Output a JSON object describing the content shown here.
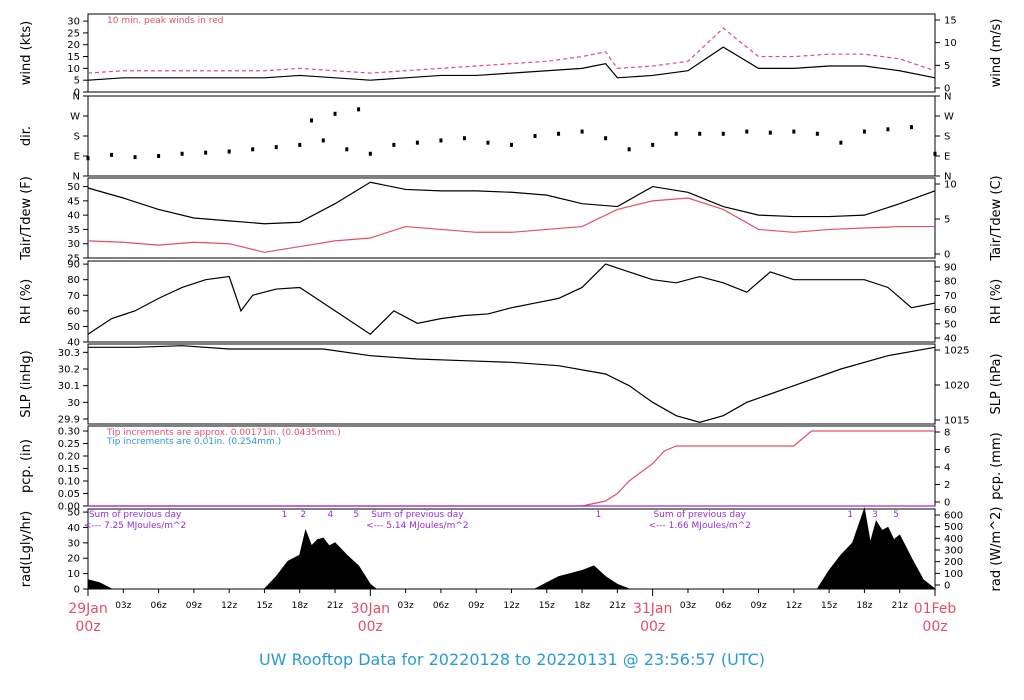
{
  "colors": {
    "red": "#e0506a",
    "blue": "#2a9ad6",
    "purple": "#9a2be2",
    "black": "#000000"
  },
  "title": "UW Rooftop Data for 20220128  to  20220131 @ 23:56:57  (UTC)",
  "x_axis": {
    "hour_ticks": [
      "03z",
      "06z",
      "09z",
      "12z",
      "15z",
      "18z",
      "21z"
    ],
    "days": [
      {
        "label": "29Jan",
        "sub": "00z"
      },
      {
        "label": "30Jan",
        "sub": "00z"
      },
      {
        "label": "31Jan",
        "sub": "00z"
      },
      {
        "label": "01Feb",
        "sub": "00z"
      }
    ],
    "range_hours": [
      0,
      72
    ]
  },
  "chart_data": [
    {
      "type": "line",
      "panel": "wind",
      "ylabel_left": "wind (kts)",
      "ylabel_right": "wind (m/s)",
      "ylim": [
        0,
        33
      ],
      "yticks_left": [
        0,
        5,
        10,
        15,
        20,
        25,
        30
      ],
      "yticks_right": [
        "0",
        "5",
        "10",
        "15"
      ],
      "annotation": "10 min. peak winds in red",
      "series": [
        {
          "color": "black",
          "style": "line",
          "x": [
            0,
            3,
            6,
            9,
            12,
            15,
            18,
            21,
            24,
            27,
            30,
            33,
            36,
            39,
            42,
            44,
            45,
            48,
            51,
            54,
            57,
            60,
            63,
            66,
            69,
            72
          ],
          "values": [
            5,
            6,
            6,
            6,
            6,
            6,
            7,
            6,
            5,
            6,
            7,
            7,
            8,
            9,
            10,
            12,
            6,
            7,
            9,
            19,
            10,
            10,
            11,
            11,
            9,
            6
          ]
        },
        {
          "color": "red",
          "style": "dashed",
          "x": [
            0,
            3,
            6,
            9,
            12,
            15,
            18,
            21,
            24,
            27,
            30,
            33,
            36,
            39,
            42,
            44,
            45,
            48,
            51,
            54,
            57,
            60,
            63,
            66,
            69,
            72
          ],
          "values": [
            8,
            9,
            9,
            9,
            9,
            9,
            10,
            9,
            8,
            9,
            10,
            11,
            12,
            13,
            15,
            17,
            10,
            11,
            13,
            27,
            15,
            15,
            16,
            16,
            14,
            9
          ]
        }
      ]
    },
    {
      "type": "scatter",
      "panel": "dir",
      "ylabel_left": "dir.",
      "ylim": [
        0,
        360
      ],
      "yticks_left": [
        "N",
        "E",
        "S",
        "W",
        "N"
      ],
      "yticks_right": [
        "N",
        "E",
        "S",
        "W",
        "N"
      ],
      "series": [
        {
          "color": "black",
          "x": [
            0,
            2,
            4,
            6,
            8,
            10,
            12,
            14,
            16,
            18,
            19,
            20,
            21,
            22,
            23,
            24,
            26,
            28,
            30,
            32,
            34,
            36,
            38,
            40,
            42,
            44,
            46,
            48,
            50,
            52,
            54,
            56,
            58,
            60,
            62,
            64,
            66,
            68,
            70,
            72
          ],
          "values": [
            80,
            95,
            85,
            90,
            100,
            105,
            110,
            120,
            130,
            140,
            250,
            160,
            280,
            120,
            300,
            100,
            140,
            150,
            160,
            170,
            150,
            140,
            180,
            190,
            200,
            170,
            120,
            140,
            190,
            190,
            190,
            200,
            195,
            200,
            190,
            150,
            200,
            210,
            220,
            100
          ]
        }
      ]
    },
    {
      "type": "line",
      "panel": "temp",
      "ylabel_left": "Tair/Tdew (F)",
      "ylabel_right": "Tair/Tdew (C)",
      "ylim": [
        25,
        53
      ],
      "yticks_left": [
        25,
        30,
        35,
        40,
        45,
        50
      ],
      "yticks_right": [
        "0",
        "5",
        "10"
      ],
      "series": [
        {
          "color": "black",
          "x": [
            0,
            3,
            6,
            9,
            12,
            15,
            18,
            21,
            24,
            27,
            30,
            33,
            36,
            39,
            42,
            45,
            48,
            51,
            54,
            57,
            60,
            63,
            66,
            69,
            72
          ],
          "values": [
            49.5,
            46,
            42,
            39,
            38,
            37,
            37.5,
            44,
            51.5,
            49,
            48.5,
            48.5,
            48,
            47,
            44,
            43,
            50,
            48,
            43,
            40,
            39.5,
            39.5,
            40,
            44,
            48.5
          ]
        },
        {
          "color": "red",
          "x": [
            0,
            3,
            6,
            9,
            12,
            15,
            18,
            21,
            24,
            27,
            30,
            33,
            36,
            39,
            42,
            45,
            48,
            51,
            54,
            57,
            60,
            63,
            66,
            69,
            72
          ],
          "values": [
            31,
            30.5,
            29.5,
            30.5,
            30,
            27,
            29,
            31,
            32,
            36,
            35,
            34,
            34,
            35,
            36,
            42,
            45,
            46,
            42,
            35,
            34,
            35,
            35.5,
            36,
            36
          ]
        }
      ]
    },
    {
      "type": "line",
      "panel": "rh",
      "ylabel_left": "RH (%)",
      "ylabel_right": "RH (%)",
      "ylim": [
        40,
        92
      ],
      "yticks_left": [
        40,
        50,
        60,
        70,
        80,
        90
      ],
      "yticks_right": [
        "40",
        "50",
        "60",
        "70",
        "80",
        "90"
      ],
      "series": [
        {
          "color": "black",
          "x": [
            0,
            2,
            4,
            6,
            8,
            10,
            12,
            13,
            14,
            16,
            18,
            20,
            22,
            24,
            26,
            28,
            30,
            32,
            34,
            36,
            38,
            40,
            42,
            44,
            46,
            48,
            50,
            52,
            54,
            56,
            58,
            60,
            62,
            64,
            66,
            68,
            70,
            72
          ],
          "values": [
            45,
            55,
            60,
            68,
            75,
            80,
            82,
            60,
            70,
            74,
            75,
            65,
            55,
            45,
            60,
            52,
            55,
            57,
            58,
            62,
            65,
            68,
            75,
            90,
            85,
            80,
            78,
            82,
            78,
            72,
            85,
            80,
            80,
            80,
            80,
            75,
            62,
            65
          ]
        }
      ]
    },
    {
      "type": "line",
      "panel": "slp",
      "ylabel_left": "SLP (inHg)",
      "ylabel_right": "SLP (hPa)",
      "ylim": [
        29.87,
        30.35
      ],
      "yticks_left": [
        29.9,
        30.0,
        30.1,
        30.2,
        30.3
      ],
      "yticks_right": [
        "1015",
        "1020",
        "1025"
      ],
      "series": [
        {
          "color": "black",
          "x": [
            0,
            4,
            8,
            12,
            16,
            20,
            24,
            28,
            32,
            36,
            40,
            44,
            46,
            48,
            50,
            52,
            54,
            56,
            60,
            64,
            68,
            72
          ],
          "values": [
            30.33,
            30.33,
            30.34,
            30.32,
            30.32,
            30.32,
            30.28,
            30.26,
            30.25,
            30.24,
            30.22,
            30.17,
            30.1,
            30.0,
            29.92,
            29.88,
            29.92,
            30.0,
            30.1,
            30.2,
            30.28,
            30.33
          ]
        }
      ]
    },
    {
      "type": "line",
      "panel": "pcp",
      "ylabel_left": "pcp. (in)",
      "ylabel_right": "pcp. (mm)",
      "ylim": [
        0,
        0.32
      ],
      "yticks_left": [
        0.0,
        0.05,
        0.1,
        0.15,
        0.2,
        0.25,
        0.3
      ],
      "yticks_left_labels": [
        "0.00",
        "0.05",
        "0.10",
        "0.15",
        "0.20",
        "0.25",
        "0.30"
      ],
      "yticks_right": [
        "0",
        "2",
        "4",
        "6",
        "8"
      ],
      "notes": [
        {
          "text": "Tip increments are approx. 0.00171in. (0.0435mm.)",
          "color": "red"
        },
        {
          "text": "Tip increments are 0.01in. (0.254mm.)",
          "color": "blue"
        }
      ],
      "series": [
        {
          "color": "red",
          "x": [
            0,
            42,
            44,
            45,
            46,
            48,
            49,
            50,
            54,
            60,
            61,
            61.5,
            62,
            72
          ],
          "values": [
            0,
            0,
            0.02,
            0.05,
            0.1,
            0.17,
            0.22,
            0.24,
            0.24,
            0.24,
            0.28,
            0.3,
            0.3,
            0.3
          ]
        },
        {
          "color": "purple",
          "x": [
            0,
            72
          ],
          "values": [
            0,
            0
          ]
        }
      ]
    },
    {
      "type": "area",
      "panel": "rad",
      "ylabel_left": "rad(Lgly/hr)",
      "ylabel_right": "rad (W/m^2)",
      "ylim": [
        0,
        52
      ],
      "yticks_left": [
        0,
        10,
        20,
        30,
        40,
        50
      ],
      "yticks_right": [
        "0",
        "100",
        "200",
        "300",
        "400",
        "500",
        "600"
      ],
      "daily_notes": [
        {
          "line1": "Sum of previous day",
          "line2": "<--- 7.25 MJoules/m^2",
          "day": 0
        },
        {
          "line1": "Sum of previous day",
          "line2": "<--- 5.14 MJoules/m^2",
          "day": 1
        },
        {
          "line1": "Sum of previous day",
          "line2": "<--- 1.66 MJoules/m^2",
          "day": 2
        }
      ],
      "markers": [
        {
          "label": "1",
          "x": 16.7
        },
        {
          "label": "2",
          "x": 18.3
        },
        {
          "label": "4",
          "x": 20.6
        },
        {
          "label": "5",
          "x": 22.8
        },
        {
          "label": "1",
          "x": 43.4
        },
        {
          "label": "1",
          "x": 64.8
        },
        {
          "label": "3",
          "x": 66.9
        },
        {
          "label": "5",
          "x": 68.7
        }
      ],
      "series": [
        {
          "color": "black",
          "x": [
            0,
            0.5,
            1,
            1.5,
            2,
            15,
            16,
            17,
            18,
            18.5,
            19,
            19.5,
            20,
            20.5,
            21,
            22,
            23,
            24,
            24.5,
            38,
            39,
            40,
            41,
            42,
            43,
            44,
            45,
            46,
            62,
            63,
            64,
            65,
            66,
            66.5,
            67,
            67.5,
            68,
            68.5,
            69,
            70,
            71,
            72
          ],
          "values": [
            6,
            5,
            4,
            2,
            0,
            0,
            8,
            18,
            22,
            38,
            28,
            32,
            33,
            28,
            30,
            22,
            15,
            3,
            0,
            0,
            4,
            8,
            10,
            12,
            15,
            8,
            3,
            0,
            0,
            12,
            22,
            30,
            52,
            30,
            44,
            38,
            40,
            32,
            35,
            20,
            6,
            0
          ]
        }
      ]
    }
  ]
}
